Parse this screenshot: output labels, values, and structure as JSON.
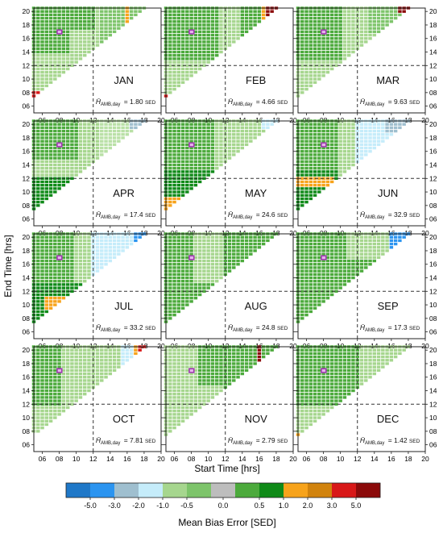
{
  "chart_data": {
    "type": "heatmap",
    "xlabel": "Start Time [hrs]",
    "ylabel": "End Time [hrs]",
    "x_ticks": [
      "06",
      "08",
      "10",
      "12",
      "14",
      "16",
      "18",
      "20"
    ],
    "y_ticks": [
      "06",
      "08",
      "10",
      "12",
      "14",
      "16",
      "18",
      "20"
    ],
    "x_range": [
      5,
      20
    ],
    "y_range": [
      5,
      20.5
    ],
    "reference_lines": {
      "x": 12,
      "y": 12
    },
    "colorbar": {
      "label": "Mean Bias Error [SED]",
      "tick_labels": [
        "-5.0",
        "-3.0",
        "-2.0",
        "-1.0",
        "-0.5",
        "0.0",
        "0.5",
        "1.0",
        "2.0",
        "3.0",
        "5.0"
      ],
      "colors": [
        "#1f78c8",
        "#2b94f0",
        "#9fbfcf",
        "#c5ecfa",
        "#a6d68e",
        "#7dc46a",
        "#bdbdbd",
        "#4caa3c",
        "#0f8a18",
        "#f7a31b",
        "#d1830d",
        "#d81818",
        "#8b0a0a"
      ]
    },
    "panels": [
      {
        "month": "JAN",
        "stat_label": "H̄",
        "stat_sub": "AMB,day",
        "stat_value": "= 1.80",
        "stat_unit": "SED"
      },
      {
        "month": "FEB",
        "stat_label": "H̄",
        "stat_sub": "AMB,day",
        "stat_value": "= 4.66",
        "stat_unit": "SED"
      },
      {
        "month": "MAR",
        "stat_label": "H̄",
        "stat_sub": "AMB,day",
        "stat_value": "= 9.63",
        "stat_unit": "SED"
      },
      {
        "month": "APR",
        "stat_label": "H̄",
        "stat_sub": "AMB,day",
        "stat_value": "= 17.4",
        "stat_unit": "SED"
      },
      {
        "month": "MAY",
        "stat_label": "H̄",
        "stat_sub": "AMB,day",
        "stat_value": "= 24.6",
        "stat_unit": "SED"
      },
      {
        "month": "JUN",
        "stat_label": "H̄",
        "stat_sub": "AMB,day",
        "stat_value": "= 32.9",
        "stat_unit": "SED"
      },
      {
        "month": "JUL",
        "stat_label": "H̄",
        "stat_sub": "AMB,day",
        "stat_value": "= 33.2",
        "stat_unit": "SED"
      },
      {
        "month": "AUG",
        "stat_label": "H̄",
        "stat_sub": "AMB,day",
        "stat_value": "= 24.8",
        "stat_unit": "SED"
      },
      {
        "month": "SEP",
        "stat_label": "H̄",
        "stat_sub": "AMB,day",
        "stat_value": "= 17.3",
        "stat_unit": "SED"
      },
      {
        "month": "OCT",
        "stat_label": "H̄",
        "stat_sub": "AMB,day",
        "stat_value": "= 7.81",
        "stat_unit": "SED"
      },
      {
        "month": "NOV",
        "stat_label": "H̄",
        "stat_sub": "AMB,day",
        "stat_value": "= 2.79",
        "stat_unit": "SED"
      },
      {
        "month": "DEC",
        "stat_label": "H̄",
        "stat_sub": "AMB,day",
        "stat_value": "= 1.42",
        "stat_unit": "SED"
      }
    ]
  }
}
